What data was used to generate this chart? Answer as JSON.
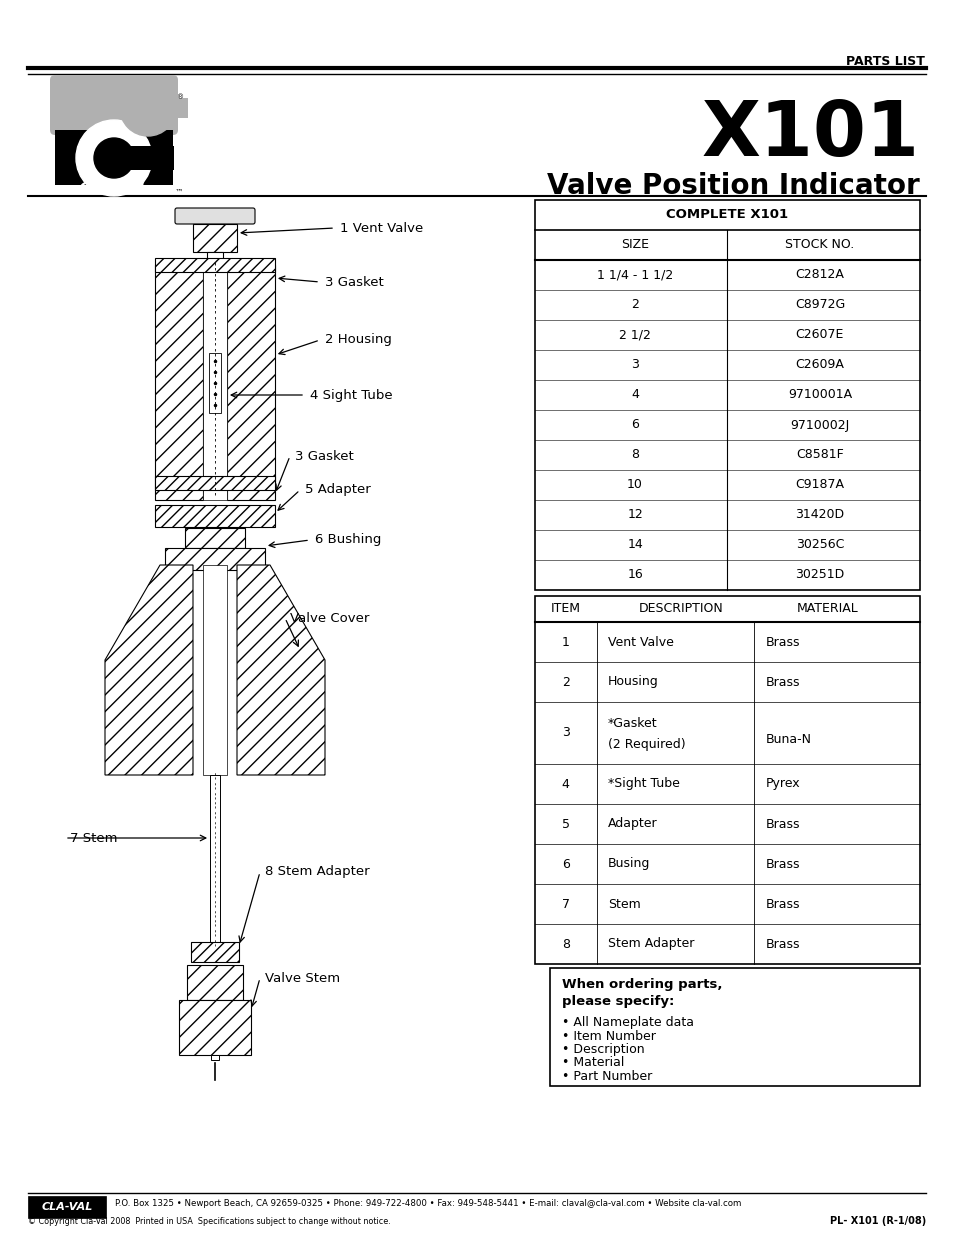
{
  "page_title": "PARTS LIST",
  "model": "X101",
  "subtitle": "Valve Position Indicator",
  "bg_color": "#ffffff",
  "complete_table_header": "COMPLETE X101",
  "complete_table_cols": [
    "SIZE",
    "STOCK NO."
  ],
  "complete_table_rows": [
    [
      "1 1/4 - 1 1/2",
      "C2812A"
    ],
    [
      "2",
      "C8972G"
    ],
    [
      "2 1/2",
      "C2607E"
    ],
    [
      "3",
      "C2609A"
    ],
    [
      "4",
      "9710001A"
    ],
    [
      "6",
      "9710002J"
    ],
    [
      "8",
      "C8581F"
    ],
    [
      "10",
      "C9187A"
    ],
    [
      "12",
      "31420D"
    ],
    [
      "14",
      "30256C"
    ],
    [
      "16",
      "30251D"
    ]
  ],
  "parts_table_cols": [
    "ITEM",
    "DESCRIPTION",
    "MATERIAL"
  ],
  "parts_table_rows": [
    [
      "1",
      "Vent Valve",
      "Brass"
    ],
    [
      "2",
      "Housing",
      "Brass"
    ],
    [
      "3",
      "*Gasket\n(2 Required)",
      "Buna-N"
    ],
    [
      "4",
      "*Sight Tube",
      "Pyrex"
    ],
    [
      "5",
      "Adapter",
      "Brass"
    ],
    [
      "6",
      "Busing",
      "Brass"
    ],
    [
      "7",
      "Stem",
      "Brass"
    ],
    [
      "8",
      "Stem Adapter",
      "Brass"
    ]
  ],
  "order_note_title": "When ordering parts,\nplease specify:",
  "order_note_bullets": [
    "All Nameplate data",
    "Item Number",
    "Description",
    "Material",
    "Part Number"
  ],
  "footer_text": "P.O. Box 1325 • Newport Beach, CA 92659-0325 • Phone: 949-722-4800 • Fax: 949-548-5441 • E-mail: claval@cla-val.com • Website cla-val.com",
  "footer_copy": "© Copyright Cla-Val 2008  Printed in USA  Specifications subject to change without notice.",
  "footer_partno": "PL- X101 (R-1/08)"
}
